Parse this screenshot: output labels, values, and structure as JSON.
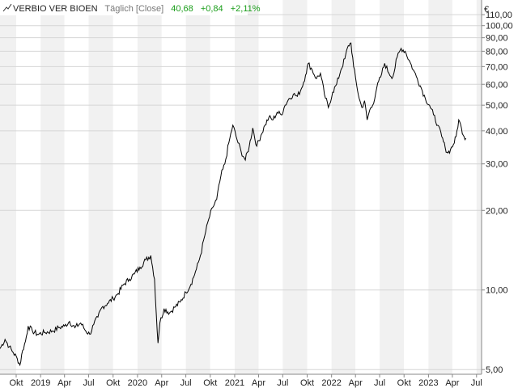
{
  "header": {
    "symbol": "VERBIO VER BIOEN",
    "interval": "Täglich [Close]",
    "last": "40,68",
    "change_abs": "+0,84",
    "change_pct": "+2,11%",
    "currency": "€"
  },
  "colors": {
    "line": "#000000",
    "band_even": "#ffffff",
    "band_odd": "#f1f1f1",
    "grid": "#d6d6d6",
    "positive": "#1a9e1a",
    "label_gray": "#777777"
  },
  "chart_data": {
    "type": "line",
    "title": "VERBIO VER BIOEN",
    "yscale": "log",
    "ylim": [
      4.8,
      125
    ],
    "xlim": [
      "2018-08-01",
      "2023-07-20"
    ],
    "grid": true,
    "y_ticks": [
      {
        "value": 110,
        "label": "110,00"
      },
      {
        "value": 100,
        "label": "100,00"
      },
      {
        "value": 90,
        "label": "90,00"
      },
      {
        "value": 80,
        "label": "80,00"
      },
      {
        "value": 70,
        "label": "70,00"
      },
      {
        "value": 60,
        "label": "60,00"
      },
      {
        "value": 50,
        "label": "50,00"
      },
      {
        "value": 40,
        "label": "40,00"
      },
      {
        "value": 30,
        "label": "30,00"
      },
      {
        "value": 20,
        "label": "20,00"
      },
      {
        "value": 10,
        "label": "10,00"
      },
      {
        "value": 5,
        "label": "5,00"
      }
    ],
    "x_ticks": [
      {
        "date": "2018-10-01",
        "label": "Okt"
      },
      {
        "date": "2019-01-01",
        "label": "2019"
      },
      {
        "date": "2019-04-01",
        "label": "Apr"
      },
      {
        "date": "2019-07-01",
        "label": "Jul"
      },
      {
        "date": "2019-10-01",
        "label": "Okt"
      },
      {
        "date": "2020-01-01",
        "label": "2020"
      },
      {
        "date": "2020-04-01",
        "label": "Apr"
      },
      {
        "date": "2020-07-01",
        "label": "Jul"
      },
      {
        "date": "2020-10-01",
        "label": "Okt"
      },
      {
        "date": "2021-01-01",
        "label": "2021"
      },
      {
        "date": "2021-04-01",
        "label": "Apr"
      },
      {
        "date": "2021-07-01",
        "label": "Jul"
      },
      {
        "date": "2021-10-01",
        "label": "Okt"
      },
      {
        "date": "2022-01-01",
        "label": "2022"
      },
      {
        "date": "2022-04-01",
        "label": "Apr"
      },
      {
        "date": "2022-07-01",
        "label": "Jul"
      },
      {
        "date": "2022-10-01",
        "label": "Okt"
      },
      {
        "date": "2023-01-01",
        "label": "2023"
      },
      {
        "date": "2023-04-01",
        "label": "Apr"
      },
      {
        "date": "2023-07-01",
        "label": "Jul"
      }
    ],
    "series": [
      {
        "values": [
          [
            "2018-08-01",
            6.0
          ],
          [
            "2018-08-20",
            6.5
          ],
          [
            "2018-09-05",
            6.1
          ],
          [
            "2018-09-20",
            5.8
          ],
          [
            "2018-10-05",
            5.5
          ],
          [
            "2018-10-15",
            5.2
          ],
          [
            "2018-10-25",
            5.9
          ],
          [
            "2018-11-05",
            6.4
          ],
          [
            "2018-11-15",
            7.3
          ],
          [
            "2018-12-01",
            7.0
          ],
          [
            "2018-12-20",
            6.8
          ],
          [
            "2019-01-15",
            6.9
          ],
          [
            "2019-02-15",
            7.0
          ],
          [
            "2019-03-10",
            7.2
          ],
          [
            "2019-04-01",
            7.3
          ],
          [
            "2019-04-20",
            7.6
          ],
          [
            "2019-05-10",
            7.2
          ],
          [
            "2019-06-01",
            7.5
          ],
          [
            "2019-06-20",
            7.0
          ],
          [
            "2019-07-05",
            6.8
          ],
          [
            "2019-07-20",
            7.4
          ],
          [
            "2019-08-05",
            7.9
          ],
          [
            "2019-08-20",
            8.6
          ],
          [
            "2019-09-10",
            8.9
          ],
          [
            "2019-10-01",
            9.3
          ],
          [
            "2019-10-20",
            9.7
          ],
          [
            "2019-11-10",
            10.5
          ],
          [
            "2019-12-01",
            11.0
          ],
          [
            "2019-12-20",
            11.5
          ],
          [
            "2020-01-10",
            12.2
          ],
          [
            "2020-02-01",
            13.0
          ],
          [
            "2020-02-20",
            13.5
          ],
          [
            "2020-03-05",
            11.0
          ],
          [
            "2020-03-12",
            8.0
          ],
          [
            "2020-03-18",
            6.3
          ],
          [
            "2020-03-25",
            7.5
          ],
          [
            "2020-04-10",
            8.5
          ],
          [
            "2020-05-01",
            8.2
          ],
          [
            "2020-05-20",
            8.6
          ],
          [
            "2020-06-10",
            9.0
          ],
          [
            "2020-07-01",
            9.8
          ],
          [
            "2020-07-20",
            10.5
          ],
          [
            "2020-08-10",
            12.0
          ],
          [
            "2020-08-25",
            13.5
          ],
          [
            "2020-09-10",
            16.0
          ],
          [
            "2020-09-25",
            18.5
          ],
          [
            "2020-10-10",
            20.5
          ],
          [
            "2020-10-25",
            22.0
          ],
          [
            "2020-11-10",
            27.0
          ],
          [
            "2020-11-25",
            30.0
          ],
          [
            "2020-12-10",
            36.0
          ],
          [
            "2020-12-25",
            42.0
          ],
          [
            "2021-01-10",
            37.0
          ],
          [
            "2021-01-25",
            33.5
          ],
          [
            "2021-02-10",
            31.0
          ],
          [
            "2021-02-25",
            35.0
          ],
          [
            "2021-03-10",
            41.0
          ],
          [
            "2021-03-25",
            35.0
          ],
          [
            "2021-04-10",
            38.5
          ],
          [
            "2021-04-25",
            42.0
          ],
          [
            "2021-05-10",
            45.0
          ],
          [
            "2021-05-25",
            44.0
          ],
          [
            "2021-06-10",
            47.0
          ],
          [
            "2021-06-25",
            46.0
          ],
          [
            "2021-07-10",
            50.0
          ],
          [
            "2021-07-25",
            53.0
          ],
          [
            "2021-08-10",
            55.0
          ],
          [
            "2021-08-25",
            54.0
          ],
          [
            "2021-09-10",
            58.0
          ],
          [
            "2021-09-25",
            65.0
          ],
          [
            "2021-10-05",
            72.0
          ],
          [
            "2021-10-20",
            68.0
          ],
          [
            "2021-11-05",
            63.0
          ],
          [
            "2021-11-20",
            66.0
          ],
          [
            "2021-12-05",
            55.0
          ],
          [
            "2021-12-20",
            49.0
          ],
          [
            "2022-01-05",
            56.0
          ],
          [
            "2022-01-20",
            60.0
          ],
          [
            "2022-02-05",
            68.0
          ],
          [
            "2022-02-20",
            75.0
          ],
          [
            "2022-03-05",
            84.0
          ],
          [
            "2022-03-15",
            86.0
          ],
          [
            "2022-03-25",
            70.0
          ],
          [
            "2022-04-05",
            60.0
          ],
          [
            "2022-04-15",
            53.0
          ],
          [
            "2022-04-25",
            49.0
          ],
          [
            "2022-05-05",
            52.0
          ],
          [
            "2022-05-15",
            44.0
          ],
          [
            "2022-05-25",
            48.0
          ],
          [
            "2022-06-05",
            50.0
          ],
          [
            "2022-06-20",
            58.0
          ],
          [
            "2022-07-05",
            64.0
          ],
          [
            "2022-07-20",
            72.0
          ],
          [
            "2022-08-05",
            66.0
          ],
          [
            "2022-08-20",
            64.0
          ],
          [
            "2022-09-05",
            76.0
          ],
          [
            "2022-09-20",
            82.0
          ],
          [
            "2022-10-05",
            80.0
          ],
          [
            "2022-10-20",
            74.0
          ],
          [
            "2022-11-05",
            68.0
          ],
          [
            "2022-11-20",
            63.0
          ],
          [
            "2022-12-05",
            58.0
          ],
          [
            "2022-12-20",
            53.0
          ],
          [
            "2023-01-05",
            50.0
          ],
          [
            "2023-01-20",
            46.0
          ],
          [
            "2023-02-05",
            42.0
          ],
          [
            "2023-02-20",
            38.0
          ],
          [
            "2023-03-05",
            34.5
          ],
          [
            "2023-03-15",
            33.0
          ],
          [
            "2023-03-25",
            34.0
          ],
          [
            "2023-04-05",
            35.5
          ],
          [
            "2023-04-15",
            38.0
          ],
          [
            "2023-04-25",
            44.0
          ],
          [
            "2023-05-05",
            41.0
          ],
          [
            "2023-05-15",
            38.0
          ],
          [
            "2023-05-22",
            37.5
          ]
        ]
      }
    ]
  }
}
